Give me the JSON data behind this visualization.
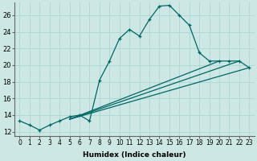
{
  "xlabel": "Humidex (Indice chaleur)",
  "bg_color": "#cde8e4",
  "grid_color": "#b0d8d4",
  "line_color": "#006666",
  "xlim": [
    -0.5,
    23.5
  ],
  "ylim": [
    11.5,
    27.5
  ],
  "yticks": [
    12,
    14,
    16,
    18,
    20,
    22,
    24,
    26
  ],
  "xticks": [
    0,
    1,
    2,
    3,
    4,
    5,
    6,
    7,
    8,
    9,
    10,
    11,
    12,
    13,
    14,
    15,
    16,
    17,
    18,
    19,
    20,
    21,
    22,
    23
  ],
  "line1_x": [
    0,
    1,
    2,
    3,
    4,
    5,
    6,
    7,
    8,
    9,
    10,
    11,
    12,
    13,
    14,
    15,
    16,
    17,
    18,
    19,
    20,
    21,
    22,
    23
  ],
  "line1_y": [
    13.3,
    12.8,
    12.2,
    12.8,
    13.3,
    13.8,
    14.0,
    13.3,
    18.2,
    20.5,
    23.2,
    24.3,
    23.5,
    25.5,
    27.1,
    27.2,
    26.0,
    24.8,
    21.5,
    20.5,
    20.5,
    20.5,
    20.5,
    19.7
  ],
  "line2_x": [
    5,
    23
  ],
  "line2_y": [
    13.5,
    19.7
  ],
  "line3_x": [
    5,
    22
  ],
  "line3_y": [
    13.5,
    20.5
  ],
  "line4_x": [
    5,
    20
  ],
  "line4_y": [
    13.5,
    20.5
  ],
  "xlabel_fontsize": 6.5,
  "tick_fontsize": 5.5,
  "ytick_fontsize": 6.0
}
